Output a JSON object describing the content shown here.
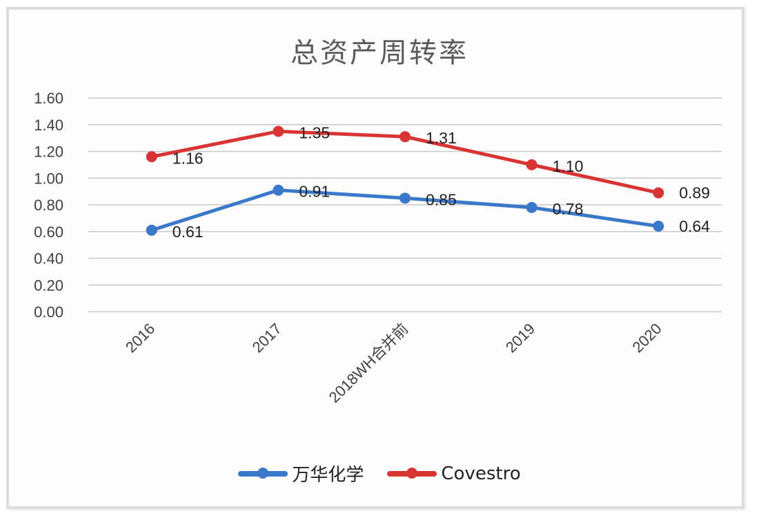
{
  "chart_data": {
    "type": "line",
    "title": "总资产周转率",
    "xlabel": "",
    "ylabel": "",
    "categories": [
      "2016",
      "2017",
      "2018WH合并前",
      "2019",
      "2020"
    ],
    "series": [
      {
        "name": "万华化学",
        "color": "#3a78c9",
        "values": [
          0.61,
          0.91,
          0.85,
          0.78,
          0.64
        ],
        "labels": [
          "0.61",
          "0.91",
          "0.85",
          "0.78",
          "0.64"
        ]
      },
      {
        "name": "Covestro",
        "color": "#d93434",
        "values": [
          1.16,
          1.35,
          1.31,
          1.1,
          0.89
        ],
        "labels": [
          "1.16",
          "1.35",
          "1.31",
          "1.10",
          "0.89"
        ]
      }
    ],
    "ylim": [
      0,
      1.6
    ],
    "yticks": [
      "0.00",
      "0.20",
      "0.40",
      "0.60",
      "0.80",
      "1.00",
      "1.20",
      "1.40",
      "1.60"
    ],
    "grid": true,
    "legend_position": "bottom",
    "data_labels": true
  },
  "legend": {
    "items": [
      {
        "label": "万华化学",
        "color": "#3a78c9"
      },
      {
        "label": "Covestro",
        "color": "#d93434"
      }
    ]
  }
}
